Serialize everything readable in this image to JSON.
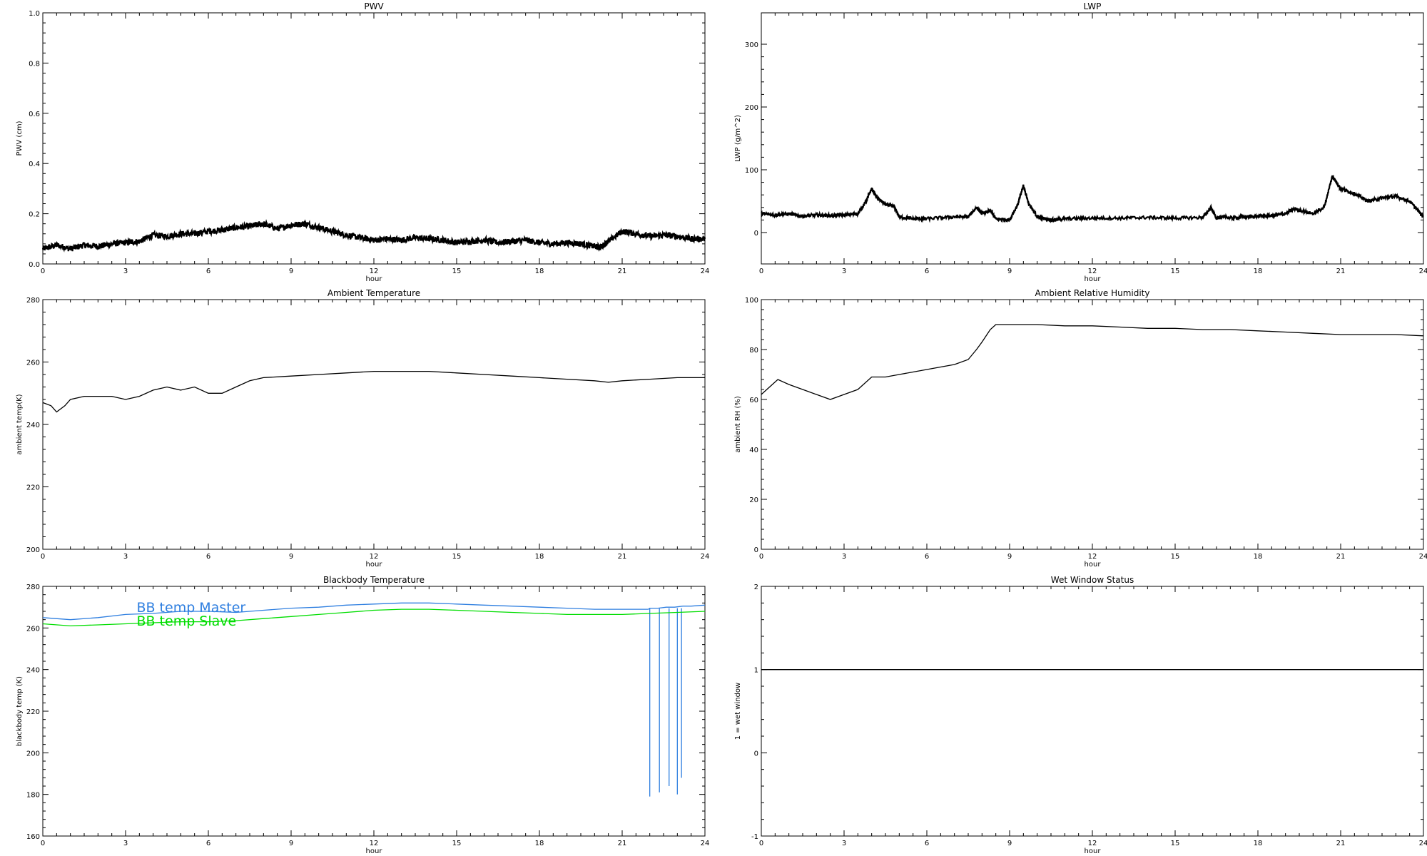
{
  "chart_data": [
    {
      "type": "scatter",
      "title": "PWV",
      "xlabel": "hour",
      "ylabel": "PWV (cm)",
      "xlim": [
        0,
        24
      ],
      "ylim": [
        0,
        1
      ],
      "xticks": [
        0,
        3,
        6,
        9,
        12,
        15,
        18,
        21,
        24
      ],
      "yticks": [
        "0.0",
        "0.2",
        "0.4",
        "0.6",
        "0.8",
        "1.0"
      ],
      "series": [
        {
          "color": "#000000",
          "noise": 0.012,
          "x": [
            0,
            0.5,
            1,
            1.5,
            2,
            2.5,
            3,
            3.5,
            4,
            4.5,
            5,
            5.5,
            6,
            6.5,
            7,
            7.5,
            8,
            8.5,
            9,
            9.5,
            10,
            10.5,
            11,
            11.5,
            12,
            12.5,
            13,
            13.5,
            14,
            14.5,
            15,
            15.5,
            16,
            16.5,
            17,
            17.5,
            18,
            18.5,
            19,
            19.5,
            20,
            20.2,
            20.5,
            21,
            21.5,
            22,
            22.5,
            23,
            23.5,
            24
          ],
          "y": [
            0.06,
            0.075,
            0.06,
            0.075,
            0.07,
            0.08,
            0.085,
            0.09,
            0.115,
            0.11,
            0.12,
            0.12,
            0.13,
            0.135,
            0.145,
            0.15,
            0.16,
            0.14,
            0.155,
            0.16,
            0.145,
            0.13,
            0.115,
            0.105,
            0.095,
            0.1,
            0.095,
            0.105,
            0.1,
            0.095,
            0.085,
            0.09,
            0.095,
            0.085,
            0.09,
            0.095,
            0.085,
            0.08,
            0.085,
            0.08,
            0.07,
            0.065,
            0.09,
            0.13,
            0.12,
            0.11,
            0.115,
            0.11,
            0.1,
            0.1
          ]
        }
      ]
    },
    {
      "type": "scatter",
      "title": "LWP",
      "xlabel": "hour",
      "ylabel": "LWP (g/m^2)",
      "xlim": [
        0,
        24
      ],
      "ylim": [
        -50,
        350
      ],
      "xticks": [
        0,
        3,
        6,
        9,
        12,
        15,
        18,
        21,
        24
      ],
      "yticks": [
        0,
        100,
        200,
        300
      ],
      "series": [
        {
          "color": "#000000",
          "noise": 2.5,
          "x": [
            0,
            0.5,
            1,
            1.5,
            2,
            2.5,
            3,
            3.5,
            3.8,
            4,
            4.2,
            4.5,
            4.8,
            5,
            5.5,
            6,
            7,
            7.5,
            7.8,
            8,
            8.3,
            8.5,
            9,
            9.3,
            9.5,
            9.7,
            10,
            10.3,
            10.6,
            11,
            12,
            13,
            14,
            15,
            16,
            16.3,
            16.5,
            16.7,
            17,
            17.5,
            18,
            18.5,
            19,
            19.3,
            20,
            20.4,
            20.7,
            21,
            21.5,
            22,
            22.5,
            23,
            23.5,
            24
          ],
          "y": [
            30,
            28,
            30,
            26,
            28,
            27,
            28,
            30,
            50,
            70,
            55,
            45,
            42,
            25,
            22,
            22,
            25,
            25,
            40,
            30,
            35,
            22,
            20,
            45,
            75,
            45,
            25,
            22,
            20,
            22,
            23,
            23,
            24,
            23,
            24,
            40,
            22,
            26,
            23,
            25,
            26,
            27,
            30,
            38,
            30,
            40,
            90,
            70,
            62,
            50,
            55,
            58,
            50,
            25
          ]
        }
      ]
    },
    {
      "type": "line",
      "title": "Ambient Temperature",
      "xlabel": "hour",
      "ylabel": "ambient temp(K)",
      "xlim": [
        0,
        24
      ],
      "ylim": [
        200,
        280
      ],
      "xticks": [
        0,
        3,
        6,
        9,
        12,
        15,
        18,
        21,
        24
      ],
      "yticks": [
        200,
        220,
        240,
        260,
        280
      ],
      "series": [
        {
          "color": "#000000",
          "x": [
            0,
            0.3,
            0.5,
            0.8,
            1,
            1.5,
            2,
            2.5,
            3,
            3.5,
            4,
            4.5,
            5,
            5.5,
            6,
            6.5,
            7,
            7.5,
            8,
            9,
            10,
            11,
            12,
            13,
            14,
            15,
            16,
            17,
            18,
            19,
            20,
            20.5,
            21,
            22,
            23,
            24
          ],
          "y": [
            247,
            246,
            244,
            246,
            248,
            249,
            249,
            249,
            248,
            249,
            251,
            252,
            251,
            252,
            250,
            250,
            252,
            254,
            255,
            255.5,
            256,
            256.5,
            257,
            257,
            257,
            256.5,
            256,
            255.5,
            255,
            254.5,
            254,
            253.5,
            254,
            254.5,
            255,
            255
          ]
        }
      ]
    },
    {
      "type": "line",
      "title": "Ambient Relative Humidity",
      "xlabel": "hour",
      "ylabel": "ambient RH (%)",
      "xlim": [
        0,
        24
      ],
      "ylim": [
        0,
        100
      ],
      "xticks": [
        0,
        3,
        6,
        9,
        12,
        15,
        18,
        21,
        24
      ],
      "yticks": [
        0,
        20,
        40,
        60,
        80,
        100
      ],
      "series": [
        {
          "color": "#000000",
          "x": [
            0,
            0.3,
            0.6,
            1,
            1.5,
            2,
            2.5,
            3,
            3.5,
            4,
            4.5,
            5,
            5.5,
            6,
            6.5,
            7,
            7.5,
            7.8,
            8,
            8.3,
            8.5,
            9,
            10,
            11,
            12,
            13,
            14,
            15,
            16,
            17,
            18,
            19,
            20,
            21,
            22,
            23,
            24
          ],
          "y": [
            62,
            65,
            68,
            66,
            64,
            62,
            60,
            62,
            64,
            69,
            69,
            70,
            71,
            72,
            73,
            74,
            76,
            80,
            83,
            88,
            90,
            90,
            90,
            89.5,
            89.5,
            89,
            88.5,
            88.5,
            88,
            88,
            87.5,
            87,
            86.5,
            86,
            86,
            86,
            85.5
          ]
        }
      ]
    },
    {
      "type": "line",
      "title": "Blackbody Temperature",
      "xlabel": "hour",
      "ylabel": "blackbody temp (K)",
      "xlim": [
        0,
        24
      ],
      "ylim": [
        160,
        280
      ],
      "xticks": [
        0,
        3,
        6,
        9,
        12,
        15,
        18,
        21,
        24
      ],
      "yticks": [
        160,
        180,
        200,
        220,
        240,
        260,
        280
      ],
      "legend": "top-left",
      "series": [
        {
          "name": "BB temp Master",
          "color": "#2f7fe0",
          "x": [
            0,
            1,
            2,
            3,
            4,
            5,
            6,
            7,
            8,
            9,
            10,
            11,
            12,
            13,
            14,
            15,
            16,
            17,
            18,
            19,
            20,
            21,
            21.95,
            22,
            22.3,
            22.6,
            22.9,
            23.2,
            23.5,
            24
          ],
          "y": [
            265,
            264,
            265,
            266.5,
            267,
            268,
            268,
            267.5,
            268.5,
            269.5,
            270,
            271,
            271.5,
            272,
            272,
            271.5,
            271,
            270.5,
            270,
            269.5,
            269,
            269,
            269,
            269.5,
            269.5,
            270,
            270,
            270.5,
            270.5,
            271
          ],
          "spikes": [
            {
              "x": 22.0,
              "y": 179
            },
            {
              "x": 22.35,
              "y": 181
            },
            {
              "x": 22.7,
              "y": 184
            },
            {
              "x": 23.0,
              "y": 180
            },
            {
              "x": 23.15,
              "y": 188
            }
          ]
        },
        {
          "name": "BB temp Slave",
          "color": "#00dd00",
          "x": [
            0,
            1,
            2,
            3,
            4,
            5,
            6,
            7,
            8,
            9,
            10,
            11,
            12,
            13,
            14,
            15,
            16,
            17,
            18,
            19,
            20,
            21,
            22,
            23,
            24
          ],
          "y": [
            262,
            261,
            261.5,
            262,
            262.5,
            263,
            263,
            263.5,
            264.5,
            265.5,
            266.5,
            267.5,
            268.5,
            269,
            269,
            268.5,
            268,
            267.5,
            267,
            266.5,
            266.5,
            266.5,
            267,
            267.5,
            268
          ]
        }
      ]
    },
    {
      "type": "line",
      "title": "Wet Window Status",
      "xlabel": "hour",
      "ylabel": "1 = wet window",
      "xlim": [
        0,
        24
      ],
      "ylim": [
        -1,
        2
      ],
      "xticks": [
        0,
        3,
        6,
        9,
        12,
        15,
        18,
        21,
        24
      ],
      "yticks": [
        "-1",
        "0",
        "1",
        "2"
      ],
      "series": [
        {
          "color": "#000000",
          "x": [
            0,
            24
          ],
          "y": [
            1,
            1
          ]
        }
      ]
    }
  ]
}
